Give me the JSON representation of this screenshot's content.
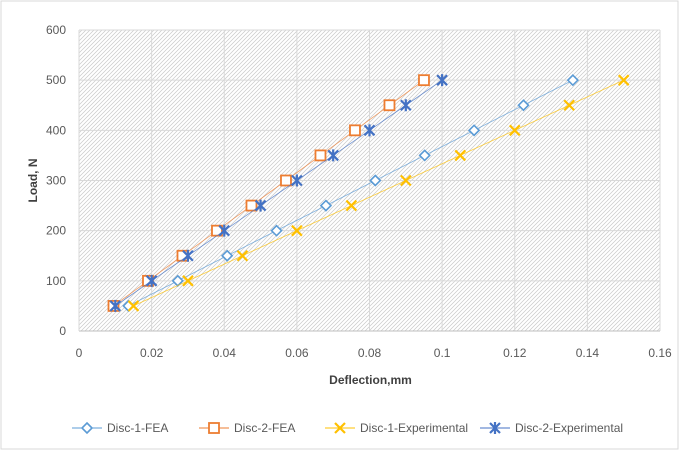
{
  "chart_data": {
    "type": "scatter",
    "title": "",
    "xlabel": "Deflection,mm",
    "ylabel": "Load, N",
    "xlim": [
      0,
      0.16
    ],
    "ylim": [
      0,
      600
    ],
    "x_ticks": [
      "0",
      "0.02",
      "0.04",
      "0.06",
      "0.08",
      "0.1",
      "0.12",
      "0.14",
      "0.16"
    ],
    "y_ticks": [
      "0",
      "100",
      "200",
      "300",
      "400",
      "500",
      "600"
    ],
    "x_tick_values": [
      0,
      0.02,
      0.04,
      0.06,
      0.08,
      0.1,
      0.12,
      0.14,
      0.16
    ],
    "y_tick_values": [
      0,
      100,
      200,
      300,
      400,
      500,
      600
    ],
    "grid": true,
    "plot_background": "diagonal-hatch",
    "legend_position": "bottom",
    "series": [
      {
        "name": "Disc-1-FEA",
        "marker": "diamond",
        "color": "#5B9BD5",
        "x": [
          0.0136,
          0.0272,
          0.0408,
          0.0544,
          0.068,
          0.0816,
          0.0952,
          0.1088,
          0.1224,
          0.136
        ],
        "y": [
          50,
          100,
          150,
          200,
          250,
          300,
          350,
          400,
          450,
          500
        ]
      },
      {
        "name": "Disc-2-FEA",
        "marker": "square",
        "color": "#ED7D31",
        "x": [
          0.0095,
          0.019,
          0.0285,
          0.038,
          0.0475,
          0.057,
          0.0665,
          0.076,
          0.0855,
          0.095
        ],
        "y": [
          50,
          100,
          150,
          200,
          250,
          300,
          350,
          400,
          450,
          500
        ]
      },
      {
        "name": "Disc-1-Experimental",
        "marker": "x",
        "color": "#FFC000",
        "x": [
          0.015,
          0.03,
          0.045,
          0.06,
          0.075,
          0.09,
          0.105,
          0.12,
          0.135,
          0.15
        ],
        "y": [
          50,
          100,
          150,
          200,
          250,
          300,
          350,
          400,
          450,
          500
        ]
      },
      {
        "name": "Disc-2-Experimental",
        "marker": "star",
        "color": "#4472C4",
        "x": [
          0.01,
          0.02,
          0.03,
          0.04,
          0.05,
          0.06,
          0.07,
          0.08,
          0.09,
          0.1
        ],
        "y": [
          50,
          100,
          150,
          200,
          250,
          300,
          350,
          400,
          450,
          500
        ]
      }
    ]
  }
}
